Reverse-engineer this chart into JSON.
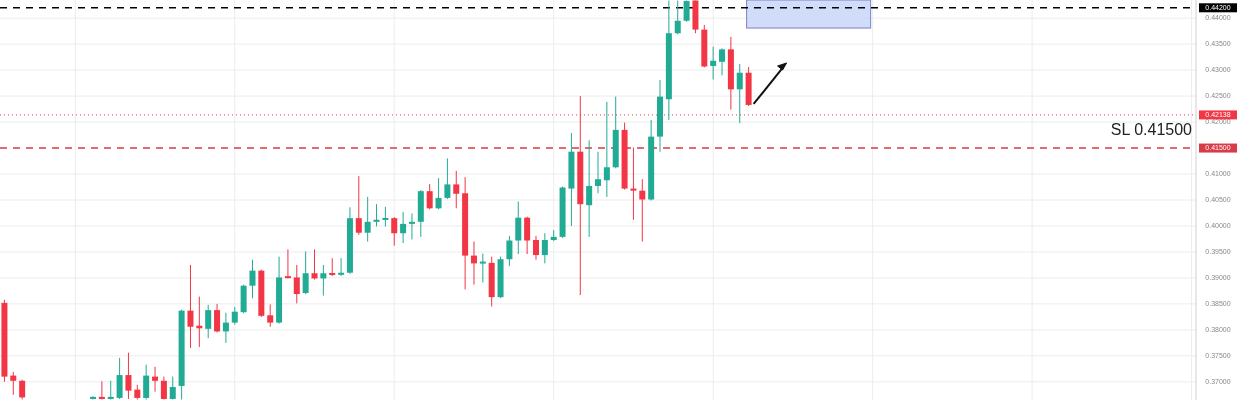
{
  "chart_data": {
    "type": "candlestick",
    "categories": [
      null,
      null,
      null,
      null,
      null,
      null,
      null,
      null,
      null,
      null,
      null,
      null,
      null,
      null,
      null,
      null,
      null,
      null,
      null,
      null,
      null,
      null,
      null,
      null,
      null,
      null,
      null,
      null,
      null,
      null,
      null,
      null,
      null,
      null,
      null,
      null,
      null,
      null,
      null,
      null,
      null,
      null,
      null,
      null,
      null,
      null,
      null,
      null,
      null,
      null,
      null,
      null,
      null,
      null,
      null,
      null,
      null,
      null,
      null,
      null,
      null,
      null,
      null,
      null,
      null,
      null,
      null,
      null,
      null,
      null,
      null,
      null,
      null,
      null,
      null,
      null,
      null,
      null,
      null,
      null,
      null,
      null,
      null,
      null,
      null,
      null,
      null,
      null,
      null,
      null,
      null,
      null,
      null,
      null,
      null,
      null,
      null,
      null,
      null,
      null,
      null,
      null,
      null,
      null,
      null,
      null,
      null,
      null,
      null,
      null,
      null,
      null,
      null,
      null,
      null,
      null,
      null,
      null,
      null,
      null,
      null,
      null,
      null,
      null,
      null,
      null,
      null,
      null,
      null,
      null,
      null,
      null,
      null,
      null,
      null
    ],
    "ohlc": [
      [
        0.3852,
        0.3858,
        0.37,
        0.371
      ],
      [
        0.3712,
        0.3719,
        0.3675,
        0.3702
      ],
      [
        0.3702,
        0.3704,
        0.3666,
        0.367
      ],
      null,
      null,
      null,
      null,
      null,
      null,
      null,
      [
        0.3667,
        0.3672,
        0.3666,
        0.3671
      ],
      [
        0.3671,
        0.3701,
        0.3666,
        0.3667
      ],
      [
        0.3667,
        0.3702,
        0.3666,
        0.3671
      ],
      [
        0.3669,
        0.3746,
        0.3667,
        0.3713
      ],
      [
        0.3713,
        0.3756,
        0.3667,
        0.3683
      ],
      [
        0.3685,
        0.3694,
        0.3666,
        0.3669
      ],
      [
        0.3669,
        0.3733,
        0.3666,
        0.3712
      ],
      [
        0.371,
        0.3729,
        0.3681,
        0.3702
      ],
      [
        0.3702,
        0.371,
        0.3666,
        0.3667
      ],
      [
        0.3667,
        0.371,
        0.3666,
        0.369
      ],
      [
        0.3692,
        0.3839,
        0.3666,
        0.3837
      ],
      [
        0.3837,
        0.3925,
        0.3765,
        0.3806
      ],
      [
        0.3808,
        0.3864,
        0.3767,
        0.3803
      ],
      [
        0.3802,
        0.3848,
        0.3784,
        0.3838
      ],
      [
        0.3838,
        0.385,
        0.3795,
        0.3797
      ],
      [
        0.3797,
        0.3833,
        0.3775,
        0.3814
      ],
      [
        0.3814,
        0.3844,
        0.381,
        0.3835
      ],
      [
        0.3834,
        0.3887,
        0.3832,
        0.3885
      ],
      [
        0.3885,
        0.3935,
        0.3861,
        0.3914
      ],
      [
        0.3914,
        0.3916,
        0.3825,
        0.3827
      ],
      [
        0.3828,
        0.3849,
        0.3806,
        0.3814
      ],
      [
        0.3814,
        0.3941,
        0.3812,
        0.3901
      ],
      [
        0.3902,
        0.3955,
        0.3899,
        0.3901
      ],
      [
        0.3901,
        0.3925,
        0.3851,
        0.3869
      ],
      [
        0.3871,
        0.3951,
        0.3869,
        0.3909
      ],
      [
        0.3909,
        0.3955,
        0.3897,
        0.3899
      ],
      [
        0.3899,
        0.3925,
        0.3866,
        0.3909
      ],
      [
        0.3909,
        0.3938,
        0.3904,
        0.3906
      ],
      [
        0.3906,
        0.3938,
        0.3904,
        0.391
      ],
      [
        0.391,
        0.4036,
        0.3908,
        0.4015
      ],
      [
        0.4015,
        0.4096,
        0.3983,
        0.3987
      ],
      [
        0.3987,
        0.4056,
        0.397,
        0.4008
      ],
      [
        0.4008,
        0.4042,
        0.3999,
        0.4012
      ],
      [
        0.4012,
        0.4037,
        0.3999,
        0.4015
      ],
      [
        0.4015,
        0.4017,
        0.3962,
        0.3986
      ],
      [
        0.3986,
        0.4027,
        0.3967,
        0.4004
      ],
      [
        0.4004,
        0.4024,
        0.3974,
        0.4008
      ],
      [
        0.4008,
        0.4069,
        0.3979,
        0.4067
      ],
      [
        0.4067,
        0.4081,
        0.4032,
        0.4034
      ],
      [
        0.4034,
        0.4092,
        0.4032,
        0.4054
      ],
      [
        0.4054,
        0.413,
        0.4052,
        0.408
      ],
      [
        0.408,
        0.4106,
        0.4034,
        0.4062
      ],
      [
        0.4063,
        0.4094,
        0.3878,
        0.3943
      ],
      [
        0.3943,
        0.397,
        0.3887,
        0.3928
      ],
      [
        0.3928,
        0.3947,
        0.3891,
        0.3931
      ],
      [
        0.3929,
        0.3941,
        0.3845,
        0.3863
      ],
      [
        0.3863,
        0.3941,
        0.3861,
        0.3936
      ],
      [
        0.3936,
        0.3981,
        0.3923,
        0.3972
      ],
      [
        0.3972,
        0.4047,
        0.3946,
        0.4016
      ],
      [
        0.4016,
        0.4018,
        0.3946,
        0.3972
      ],
      [
        0.3973,
        0.3981,
        0.3935,
        0.3944
      ],
      [
        0.3944,
        0.3986,
        0.3928,
        0.3973
      ],
      [
        0.3973,
        0.3992,
        0.3971,
        0.3979
      ],
      [
        0.3979,
        0.4076,
        0.3977,
        0.4074
      ],
      [
        0.4072,
        0.4179,
        0.4,
        0.4143
      ],
      [
        0.4143,
        0.425,
        0.3867,
        0.4042
      ],
      [
        0.404,
        0.4165,
        0.3979,
        0.4077
      ],
      [
        0.4077,
        0.4143,
        0.4063,
        0.409
      ],
      [
        0.4088,
        0.4239,
        0.4056,
        0.4113
      ],
      [
        0.4113,
        0.4249,
        0.4111,
        0.4185
      ],
      [
        0.4185,
        0.4199,
        0.407,
        0.4072
      ],
      [
        0.4072,
        0.4151,
        0.4012,
        0.4068
      ],
      [
        0.4068,
        0.409,
        0.397,
        0.4051
      ],
      [
        0.4051,
        0.4204,
        0.4049,
        0.4172
      ],
      [
        0.4172,
        0.4281,
        0.4143,
        0.4249
      ],
      [
        0.4244,
        0.4434,
        0.4204,
        0.4371
      ],
      [
        0.4371,
        0.4434,
        0.4369,
        0.4395
      ],
      [
        0.4395,
        0.4434,
        0.4393,
        0.4433
      ],
      [
        0.4434,
        0.4434,
        0.4371,
        0.4378
      ],
      [
        0.4378,
        0.4387,
        0.4305,
        0.4307
      ],
      [
        0.4308,
        0.4345,
        0.4282,
        0.4318
      ],
      [
        0.4316,
        0.4342,
        0.429,
        0.434
      ],
      [
        0.434,
        0.4364,
        0.4224,
        0.4263
      ],
      [
        0.4263,
        0.4312,
        0.4198,
        0.4295
      ],
      [
        0.4295,
        0.4306,
        0.4231,
        0.4233
      ],
      null,
      null,
      null,
      null,
      null,
      null,
      null,
      null,
      null,
      null,
      null,
      null,
      null,
      null,
      null,
      null,
      null,
      null,
      null,
      null,
      null,
      null,
      null,
      null,
      null,
      null,
      null,
      null,
      null,
      null,
      null,
      null,
      null,
      null,
      null,
      null,
      null,
      null,
      null,
      null,
      null,
      null,
      null,
      null,
      null,
      null,
      null,
      null,
      null,
      null
    ],
    "colors": [
      "#f23645",
      "#f23645",
      "#f23645",
      null,
      null,
      null,
      null,
      null,
      null,
      null,
      "#22ab94",
      "#f23645",
      "#22ab94",
      "#22ab94",
      "#f23645",
      "#f23645",
      "#22ab94",
      "#f23645",
      "#f23645",
      "#22ab94",
      "#22ab94",
      "#f23645",
      "#f23645",
      "#22ab94",
      "#f23645",
      "#22ab94",
      "#22ab94",
      "#22ab94",
      "#22ab94",
      "#f23645",
      "#f23645",
      "#22ab94",
      "#f23645",
      "#f23645",
      "#22ab94",
      "#f23645",
      "#22ab94",
      "#f23645",
      "#22ab94",
      "#22ab94",
      "#f23645",
      "#22ab94",
      "#22ab94",
      "#22ab94",
      "#f23645",
      "#22ab94",
      "#22ab94",
      "#22ab94",
      "#f23645",
      "#22ab94",
      "#22ab94",
      "#f23645",
      "#f23645",
      "#f23645",
      "#22ab94",
      "#f23645",
      "#22ab94",
      "#22ab94",
      "#22ab94",
      "#f23645",
      "#f23645",
      "#22ab94",
      "#22ab94",
      "#22ab94",
      "#22ab94",
      "#f23645",
      "#22ab94",
      "#22ab94",
      "#22ab94",
      "#22ab94",
      "#f23645",
      "#f23645",
      "#f23645",
      "#22ab94",
      "#22ab94",
      "#22ab94",
      "#22ab94",
      "#22ab94",
      "#f23645",
      "#f23645",
      "#22ab94",
      "#22ab94",
      "#f23645",
      "#22ab94",
      "#f23645",
      null,
      null,
      null,
      null,
      null,
      null,
      null,
      null,
      null,
      null,
      null,
      null,
      null,
      null,
      null,
      null,
      null,
      null,
      null,
      null,
      null,
      null,
      null,
      null,
      null,
      null,
      null,
      null,
      null,
      null,
      null,
      null,
      null,
      null,
      null,
      null,
      null,
      null,
      null,
      null,
      null,
      null,
      null,
      null,
      null,
      null,
      null,
      null,
      null,
      null
    ],
    "ylim": [
      0.3665,
      0.4435
    ],
    "yticks": [
      {
        "value": 0.37,
        "label": "0.37000"
      },
      {
        "value": 0.375,
        "label": "0.37500"
      },
      {
        "value": 0.38,
        "label": "0.38000"
      },
      {
        "value": 0.385,
        "label": "0.38500"
      },
      {
        "value": 0.39,
        "label": "0.39000"
      },
      {
        "value": 0.395,
        "label": "0.39500"
      },
      {
        "value": 0.4,
        "label": "0.40000"
      },
      {
        "value": 0.405,
        "label": "0.40500"
      },
      {
        "value": 0.41,
        "label": "0.41000"
      },
      {
        "value": 0.42,
        "label": "0.42000"
      },
      {
        "value": 0.425,
        "label": "0.42500"
      },
      {
        "value": 0.43,
        "label": "0.43000"
      },
      {
        "value": 0.435,
        "label": "0.43500"
      },
      {
        "value": 0.44,
        "label": "0.44000"
      }
    ],
    "grid": true,
    "tick_labels": "y",
    "ref_lines": [
      {
        "axis": "y",
        "value": 0.442,
        "label": "0.44200",
        "color": "#000000",
        "line_style": "dashed"
      },
      {
        "axis": "y",
        "value": 0.415,
        "label": "0.41500",
        "color": "#d93a48",
        "line_style": "dashed"
      },
      {
        "axis": "y",
        "value": 0.42138,
        "label": "0.42138",
        "color": "#f23645",
        "line_style": "dotted"
      }
    ],
    "bands": [
      {
        "axis": "y",
        "from": 0.4381,
        "to": 0.4435,
        "color": "#c5d3f7"
      }
    ],
    "annotations": [
      {
        "text": "SL 0.41500",
        "y": 0.415
      }
    ]
  }
}
